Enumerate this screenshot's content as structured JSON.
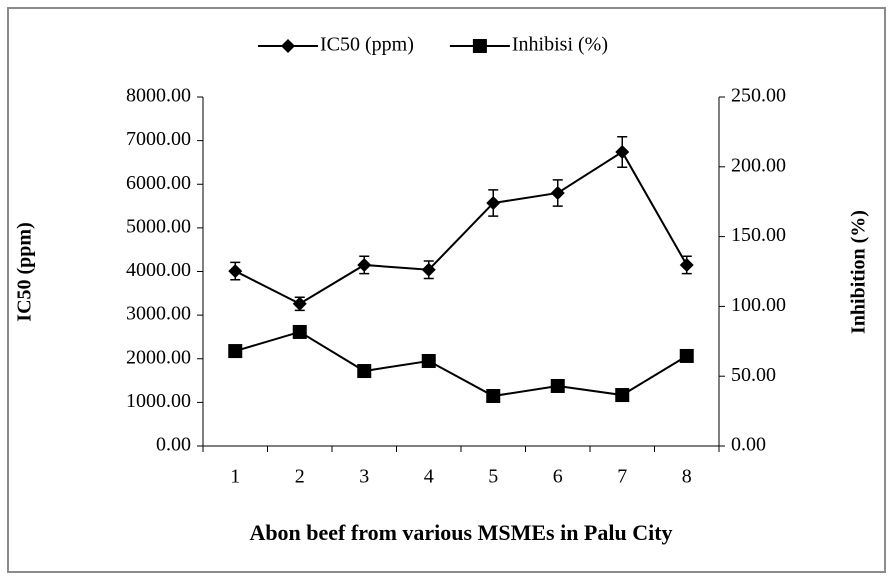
{
  "chart_data": {
    "type": "line",
    "x_label": "Abon beef from various MSMEs in Palu City",
    "y_label": "IC50 (ppm)",
    "y2_label": "Inhibition (%)",
    "categories": [
      "1",
      "2",
      "3",
      "4",
      "5",
      "6",
      "7",
      "8"
    ],
    "series": [
      {
        "name": "IC50 (ppm)",
        "color": "#000000",
        "marker": "diamond",
        "axis": "y",
        "values": [
          4010,
          3260,
          4150,
          4040,
          5570,
          5800,
          6740,
          4150
        ],
        "errors": [
          200,
          150,
          200,
          200,
          300,
          300,
          350,
          200
        ]
      },
      {
        "name": "Inhibisi (%)",
        "color": "#000000",
        "marker": "square",
        "axis": "y2",
        "values": [
          68,
          81.7,
          53.7,
          60.9,
          35.8,
          43,
          36.5,
          64.5
        ]
      }
    ],
    "ylim": [
      0,
      8000
    ],
    "yticks": [
      {
        "value": 0,
        "label": "0.00"
      },
      {
        "value": 1000,
        "label": "1000.00"
      },
      {
        "value": 2000,
        "label": "2000.00"
      },
      {
        "value": 3000,
        "label": "3000.00"
      },
      {
        "value": 4000,
        "label": "4000.00"
      },
      {
        "value": 5000,
        "label": "5000.00"
      },
      {
        "value": 6000,
        "label": "6000.00"
      },
      {
        "value": 7000,
        "label": "7000.00"
      },
      {
        "value": 8000,
        "label": "8000.00"
      }
    ],
    "y2lim": [
      0,
      250
    ],
    "y2ticks": [
      {
        "value": 0,
        "label": "0.00"
      },
      {
        "value": 50,
        "label": "50.00"
      },
      {
        "value": 100,
        "label": "100.00"
      },
      {
        "value": 150,
        "label": "150.00"
      },
      {
        "value": 200,
        "label": "200.00"
      },
      {
        "value": 250,
        "label": "250.00"
      }
    ],
    "legend": "top"
  }
}
